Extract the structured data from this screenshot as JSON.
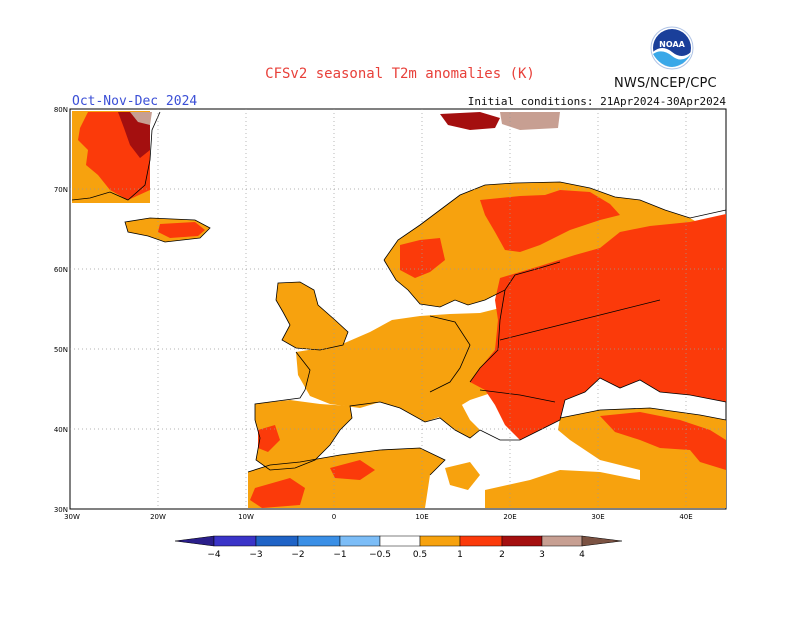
{
  "title": "CFSv2 seasonal T2m anomalies (K)",
  "agency": "NWS/NCEP/CPC",
  "period": "Oct-Nov-Dec 2024",
  "initial_conditions": "Initial conditions: 21Apr2024-30Apr2024",
  "logo": {
    "icon": "noaa-logo",
    "text": "NOAA"
  },
  "lat_labels": [
    "80N",
    "70N",
    "60N",
    "50N",
    "40N",
    "30N"
  ],
  "lon_labels": [
    "30W",
    "20W",
    "10W",
    "0",
    "10E",
    "20E",
    "30E",
    "40E"
  ],
  "colorbar": {
    "labels": [
      "−4",
      "−3",
      "−2",
      "−1",
      "−0.5",
      "0.5",
      "1",
      "2",
      "3",
      "4"
    ],
    "colors": {
      "below_min": "#2a1e8a",
      "neg_4_3": "#3a34c8",
      "neg_3_2": "#1f63c6",
      "neg_2_1": "#3a8fe6",
      "neg_1_05": "#7cbdf7",
      "pos_05_1": "#f7a20e",
      "pos_1_2": "#fb3a0a",
      "pos_2_3": "#a40f0f",
      "pos_3_4": "#c79f92",
      "above_max": "#7b5242"
    }
  }
}
